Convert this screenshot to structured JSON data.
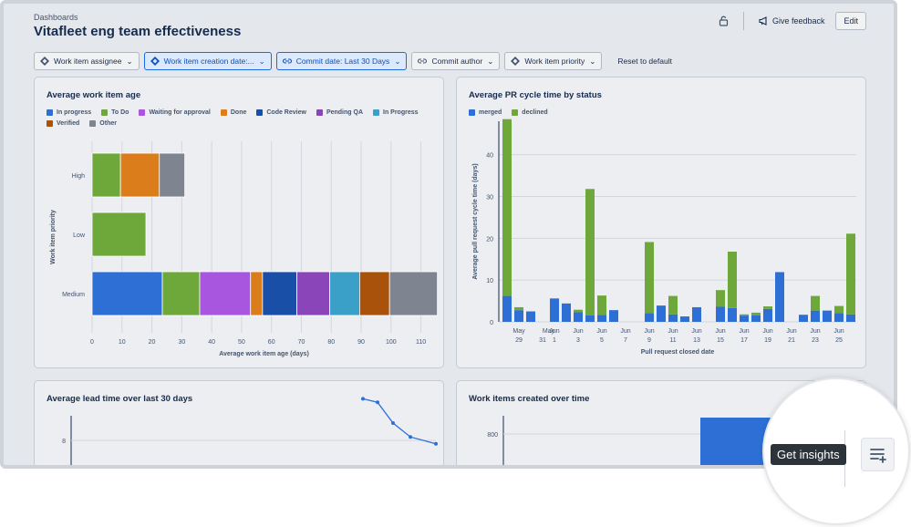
{
  "breadcrumb": "Dashboards",
  "page_title": "Vitafleet eng team effectiveness",
  "actions": {
    "feedback": "Give feedback",
    "edit": "Edit"
  },
  "filters": {
    "assignee": "Work item assignee",
    "creation_date": "Work item creation date:...",
    "commit_date": "Commit date: Last 30 Days",
    "commit_author": "Commit author",
    "priority": "Work item priority",
    "reset": "Reset to default"
  },
  "tooltip": "Get insights",
  "colors": {
    "in_progress": "#2e6fd6",
    "to_do": "#6ea83a",
    "waiting": "#a855e0",
    "done": "#db7d1a",
    "code_review": "#1a4fa8",
    "pending_qa": "#8a45b8",
    "in_progress_2": "#3aa0c8",
    "verified": "#a8520c",
    "other": "#7e8591"
  },
  "chart_data": [
    {
      "type": "bar",
      "orientation": "horizontal",
      "stacked": true,
      "title": "Average work item age",
      "xlabel": "Average work item age (days)",
      "ylabel": "Work item priority",
      "xlim": [
        0,
        115
      ],
      "xticks": [
        0,
        10,
        20,
        30,
        40,
        50,
        60,
        70,
        80,
        90,
        100,
        110
      ],
      "legend": [
        {
          "name": "In progress",
          "color": "#2e6fd6"
        },
        {
          "name": "To Do",
          "color": "#6ea83a"
        },
        {
          "name": "Waiting for approval",
          "color": "#a855e0"
        },
        {
          "name": "Done",
          "color": "#db7d1a"
        },
        {
          "name": "Code Review",
          "color": "#1a4fa8"
        },
        {
          "name": "Pending QA",
          "color": "#8a45b8"
        },
        {
          "name": "In Progress",
          "color": "#3aa0c8"
        },
        {
          "name": "Verified",
          "color": "#a8520c"
        },
        {
          "name": "Other",
          "color": "#7e8591"
        }
      ],
      "categories": [
        "High",
        "Low",
        "Medium"
      ],
      "rows": [
        {
          "category": "High",
          "segments": [
            {
              "series": "To Do",
              "value": 9.5
            },
            {
              "series": "Done",
              "value": 13
            },
            {
              "series": "Other",
              "value": 8.5
            }
          ]
        },
        {
          "category": "Low",
          "segments": [
            {
              "series": "To Do",
              "value": 18
            }
          ]
        },
        {
          "category": "Medium",
          "segments": [
            {
              "series": "In progress",
              "value": 23.5
            },
            {
              "series": "To Do",
              "value": 12.5
            },
            {
              "series": "Waiting for approval",
              "value": 17
            },
            {
              "series": "Done",
              "value": 4
            },
            {
              "series": "Code Review",
              "value": 11.5
            },
            {
              "series": "Pending QA",
              "value": 11
            },
            {
              "series": "In Progress",
              "value": 10
            },
            {
              "series": "Verified",
              "value": 10
            },
            {
              "series": "Other",
              "value": 16
            }
          ]
        }
      ]
    },
    {
      "type": "bar",
      "stacked": true,
      "title": "Average PR cycle time by status",
      "xlabel": "Pull request closed date",
      "ylabel": "Average pull request cycle time (days)",
      "ylim": [
        0,
        48
      ],
      "yticks": [
        0,
        10,
        20,
        30,
        40
      ],
      "legend": [
        {
          "name": "merged",
          "color": "#2e6fd6"
        },
        {
          "name": "declined",
          "color": "#6ea83a"
        }
      ],
      "xtick_labels": [
        {
          "i": 1,
          "top": "May",
          "bottom": "29"
        },
        {
          "i": 3,
          "top": "",
          "bottom": "31"
        },
        {
          "i": 3.5,
          "top": "May",
          "bottom": ""
        },
        {
          "i": 4,
          "top": "Jun",
          "bottom": "1"
        },
        {
          "i": 6,
          "top": "Jun",
          "bottom": "3"
        },
        {
          "i": 8,
          "top": "Jun",
          "bottom": "5"
        },
        {
          "i": 10,
          "top": "Jun",
          "bottom": "7"
        },
        {
          "i": 12,
          "top": "Jun",
          "bottom": "9"
        },
        {
          "i": 14,
          "top": "Jun",
          "bottom": "11"
        },
        {
          "i": 16,
          "top": "Jun",
          "bottom": "13"
        },
        {
          "i": 18,
          "top": "Jun",
          "bottom": "15"
        },
        {
          "i": 20,
          "top": "Jun",
          "bottom": "17"
        },
        {
          "i": 22,
          "top": "Jun",
          "bottom": "19"
        },
        {
          "i": 24,
          "top": "Jun",
          "bottom": "21"
        },
        {
          "i": 26,
          "top": "Jun",
          "bottom": "23"
        },
        {
          "i": 28,
          "top": "Jun",
          "bottom": "25"
        }
      ],
      "series": [
        {
          "name": "merged",
          "values": [
            6.2,
            2.8,
            2.5,
            0,
            5.6,
            4.4,
            2.3,
            1.6,
            1.7,
            2.8,
            0,
            0,
            2.1,
            3.9,
            1.8,
            1.3,
            3.5,
            0,
            3.6,
            3.3,
            1.5,
            1.6,
            3.1,
            11.9,
            0,
            1.7,
            2.7,
            2.7,
            2.1,
            1.8
          ]
        },
        {
          "name": "declined",
          "values": [
            42.3,
            0.7,
            0,
            0,
            0,
            0,
            0.6,
            30.2,
            4.6,
            0,
            0,
            0,
            17,
            0,
            4.4,
            0,
            0,
            0,
            4,
            13.5,
            0.3,
            0.6,
            0.6,
            0,
            0,
            0,
            3.5,
            0,
            1.7,
            19.3
          ]
        }
      ]
    },
    {
      "type": "line",
      "title": "Average lead time over last 30 days",
      "yticks": [
        8
      ],
      "series": [
        {
          "values": [
            9.2,
            9.1,
            8.5,
            8.1,
            7.9
          ]
        }
      ]
    },
    {
      "type": "bar",
      "title": "Work items created over time",
      "yticks": [
        800
      ],
      "values": [
        830
      ]
    }
  ]
}
